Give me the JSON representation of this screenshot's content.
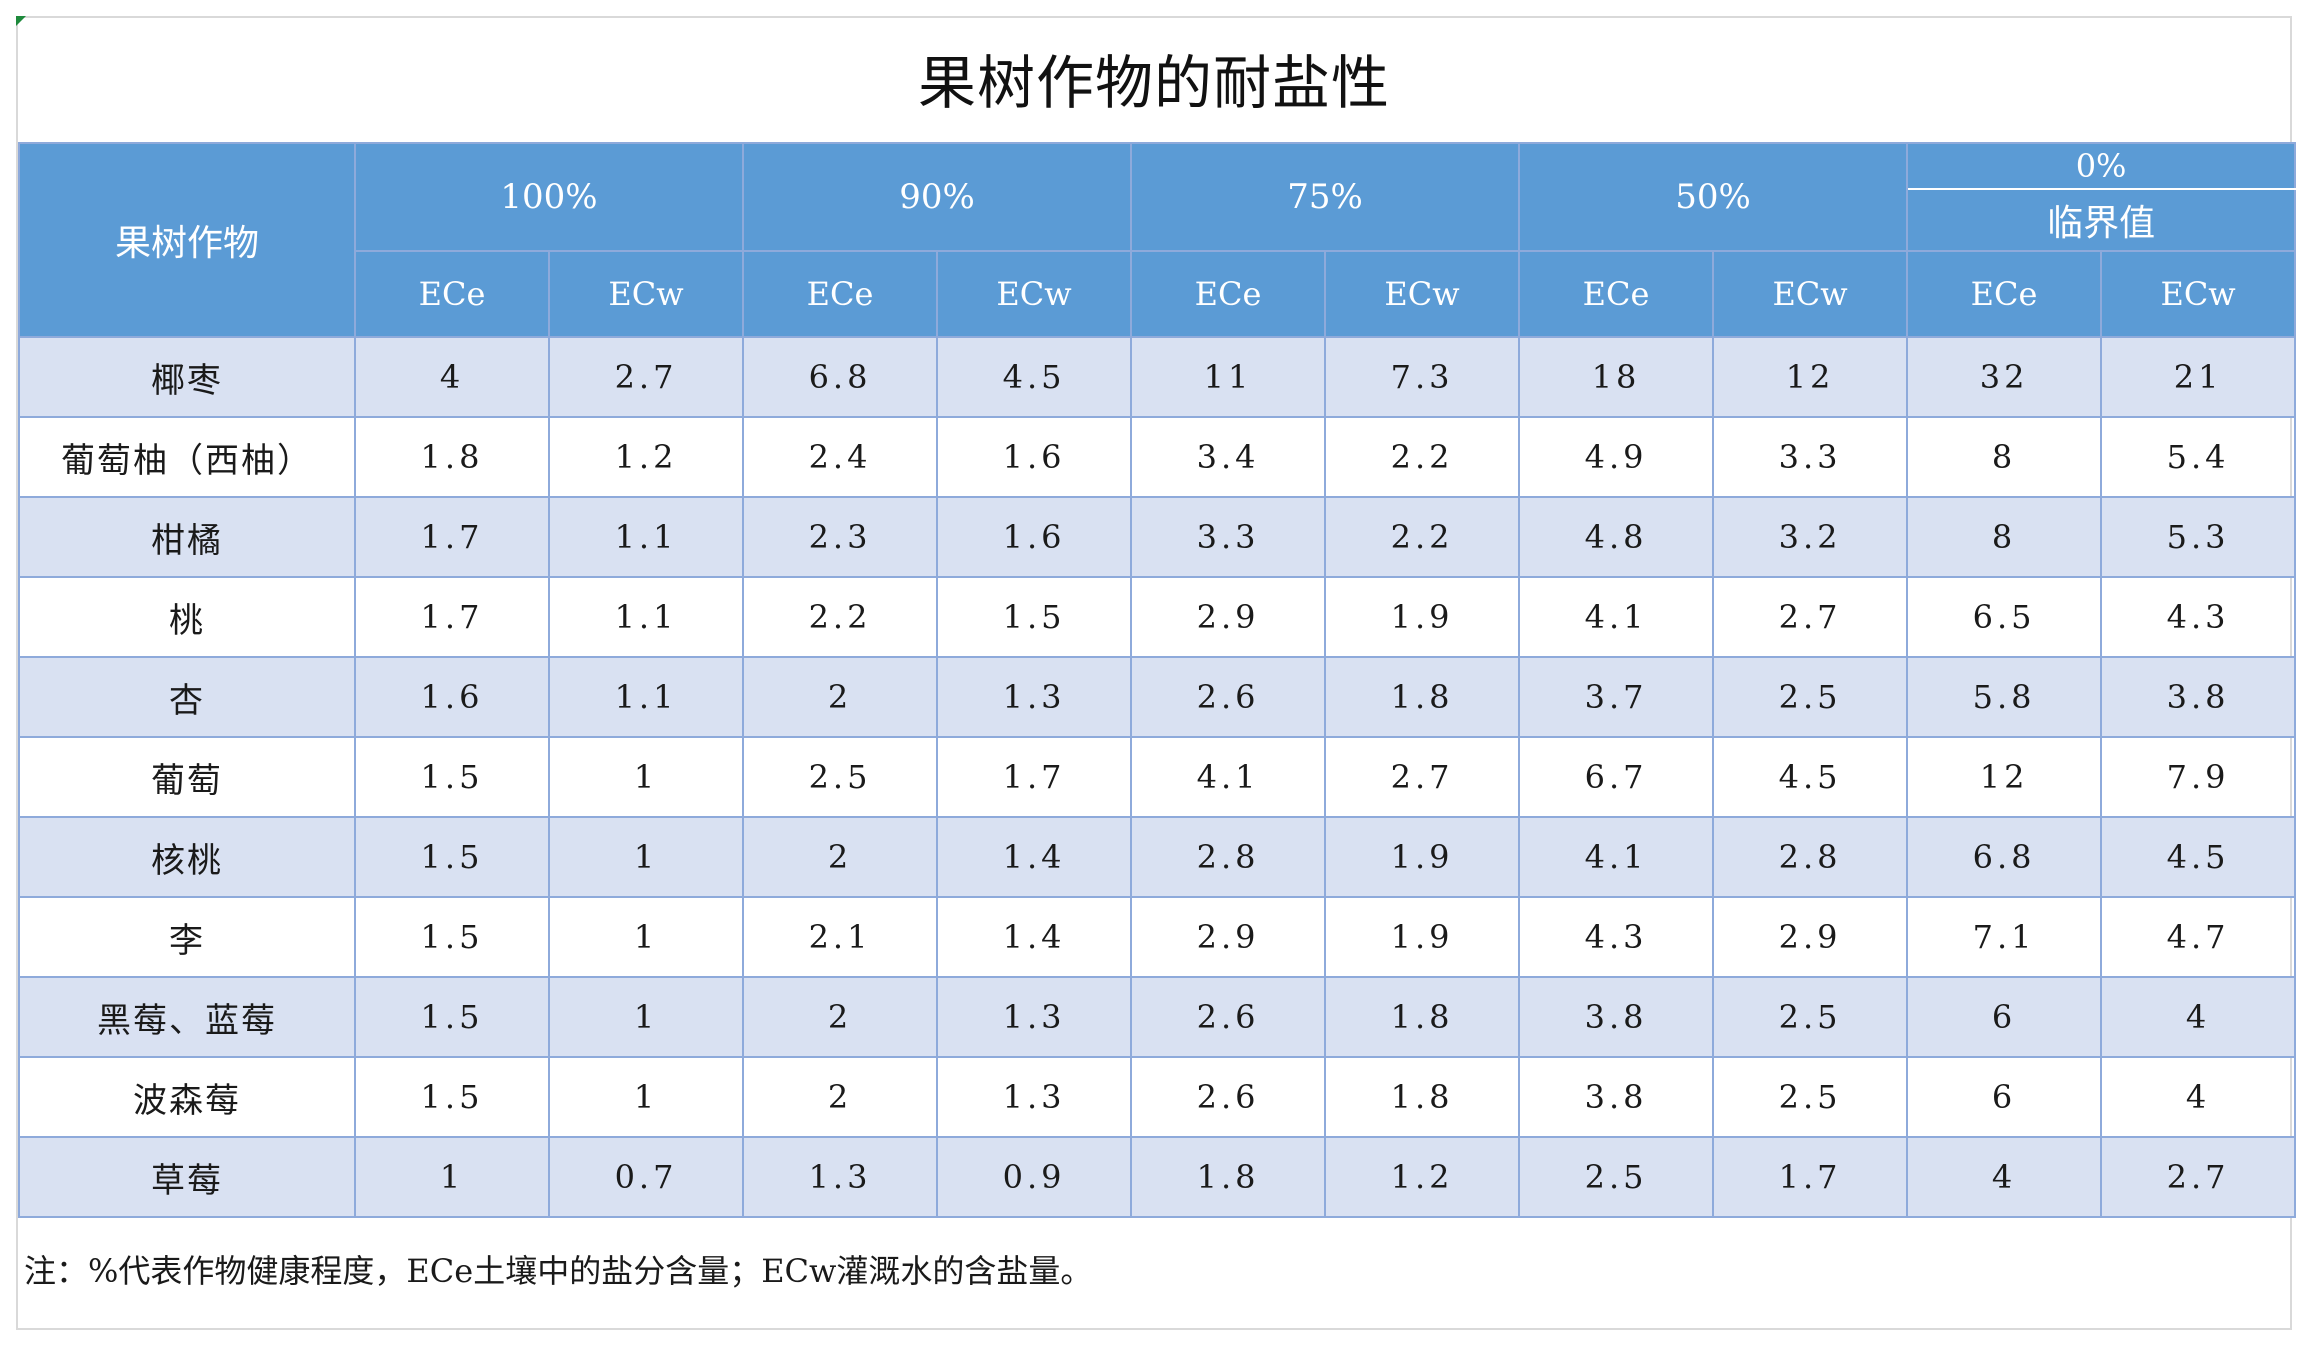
{
  "title": "果树作物的耐盐性",
  "header": {
    "crop_label": "果树作物",
    "groups": [
      "100%",
      "90%",
      "75%",
      "50%"
    ],
    "last_group_top": "0%",
    "last_group_bottom": "临界值",
    "sub_labels": [
      "ECe",
      "ECw"
    ]
  },
  "rows": [
    {
      "name": "椰枣",
      "values": [
        "4",
        "2.7",
        "6.8",
        "4.5",
        "11",
        "7.3",
        "18",
        "12",
        "32",
        "21"
      ]
    },
    {
      "name": "葡萄柚（西柚）",
      "values": [
        "1.8",
        "1.2",
        "2.4",
        "1.6",
        "3.4",
        "2.2",
        "4.9",
        "3.3",
        "8",
        "5.4"
      ]
    },
    {
      "name": "柑橘",
      "values": [
        "1.7",
        "1.1",
        "2.3",
        "1.6",
        "3.3",
        "2.2",
        "4.8",
        "3.2",
        "8",
        "5.3"
      ]
    },
    {
      "name": "桃",
      "values": [
        "1.7",
        "1.1",
        "2.2",
        "1.5",
        "2.9",
        "1.9",
        "4.1",
        "2.7",
        "6.5",
        "4.3"
      ]
    },
    {
      "name": "杏",
      "values": [
        "1.6",
        "1.1",
        "2",
        "1.3",
        "2.6",
        "1.8",
        "3.7",
        "2.5",
        "5.8",
        "3.8"
      ]
    },
    {
      "name": "葡萄",
      "values": [
        "1.5",
        "1",
        "2.5",
        "1.7",
        "4.1",
        "2.7",
        "6.7",
        "4.5",
        "12",
        "7.9"
      ]
    },
    {
      "name": "核桃",
      "values": [
        "1.5",
        "1",
        "2",
        "1.4",
        "2.8",
        "1.9",
        "4.1",
        "2.8",
        "6.8",
        "4.5"
      ]
    },
    {
      "name": "李",
      "values": [
        "1.5",
        "1",
        "2.1",
        "1.4",
        "2.9",
        "1.9",
        "4.3",
        "2.9",
        "7.1",
        "4.7"
      ]
    },
    {
      "name": "黑莓、蓝莓",
      "values": [
        "1.5",
        "1",
        "2",
        "1.3",
        "2.6",
        "1.8",
        "3.8",
        "2.5",
        "6",
        "4"
      ]
    },
    {
      "name": "波森莓",
      "values": [
        "1.5",
        "1",
        "2",
        "1.3",
        "2.6",
        "1.8",
        "3.8",
        "2.5",
        "6",
        "4"
      ]
    },
    {
      "name": "草莓",
      "values": [
        "1",
        "0.7",
        "1.3",
        "0.9",
        "1.8",
        "1.2",
        "2.5",
        "1.7",
        "4",
        "2.7"
      ]
    }
  ],
  "note": "注：%代表作物健康程度，ECe土壤中的盐分含量；ECw灌溉水的含盐量。",
  "colors": {
    "header_bg": "#5b9bd5",
    "shaded_row_bg": "#d9e1f2",
    "grid_border": "#8eaadb"
  }
}
